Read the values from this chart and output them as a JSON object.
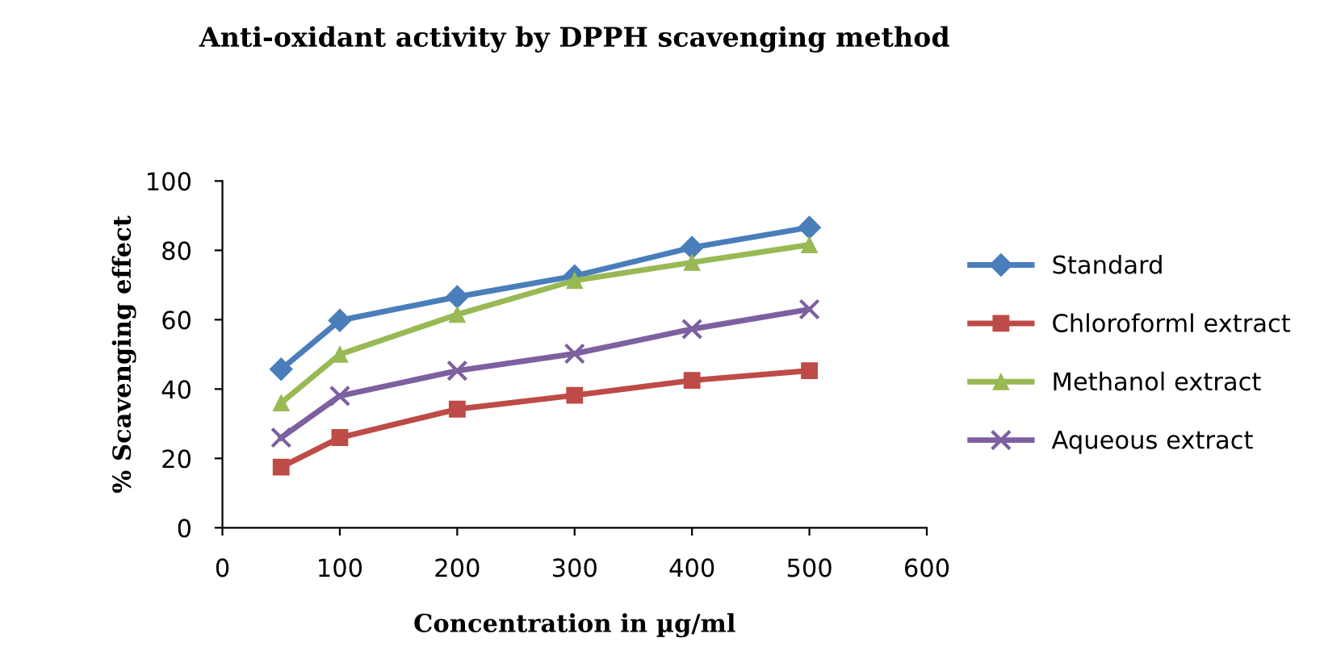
{
  "chart_data": {
    "type": "line",
    "title": "Anti-oxidant activity by DPPH scavenging method",
    "xlabel": "Concentration in µg/ml",
    "ylabel": "% Scavenging effect",
    "x": [
      50,
      100,
      200,
      300,
      400,
      500
    ],
    "series": [
      {
        "name": "Standard",
        "color": "#4a7ebb",
        "marker": "diamond",
        "values": [
          45.7,
          59.8,
          66.6,
          72.6,
          80.8,
          86.6
        ]
      },
      {
        "name": "Chloroforml extract",
        "color": "#be4b48",
        "marker": "square",
        "values": [
          17.5,
          26,
          34.2,
          38.2,
          42.5,
          45.3
        ]
      },
      {
        "name": "Methanol extract",
        "color": "#98b954",
        "marker": "triangle",
        "values": [
          36,
          50,
          61.5,
          71.3,
          76.5,
          81.6
        ]
      },
      {
        "name": "Aqueous extract",
        "color": "#7d60a0",
        "marker": "cross",
        "values": [
          26,
          38,
          45.3,
          50.2,
          57.3,
          63
        ]
      }
    ],
    "xlim": [
      0,
      600
    ],
    "xticks": [
      0,
      100,
      200,
      300,
      400,
      500,
      600
    ],
    "ylim": [
      0,
      100
    ],
    "yticks": [
      0,
      20,
      40,
      60,
      80,
      100
    ],
    "grid": false,
    "legend": "right",
    "line_style": "solid"
  }
}
